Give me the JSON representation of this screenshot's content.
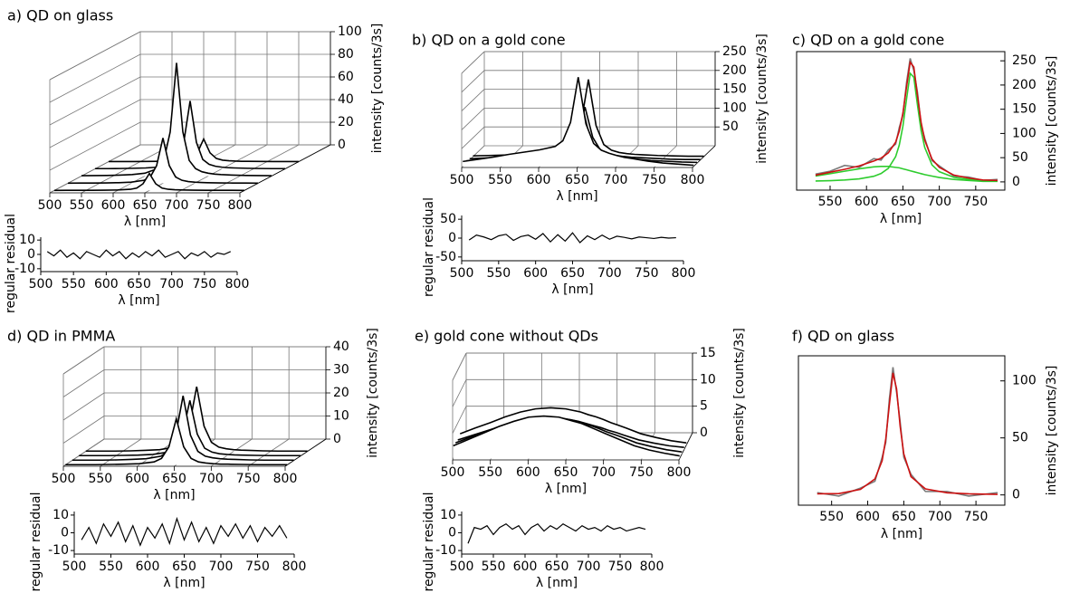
{
  "chart_data": [
    {
      "type": "waterfall",
      "title": "a) QD on glass",
      "xlabel": "λ [nm]",
      "zlabel": "intensity [counts/3s]",
      "xlim": [
        500,
        800
      ],
      "xticks": [
        500,
        550,
        600,
        650,
        700,
        750,
        800
      ],
      "zlim": [
        0,
        100
      ],
      "zticks": [
        0,
        20,
        40,
        60,
        80,
        100
      ],
      "x": [
        500,
        520,
        540,
        560,
        580,
        600,
        620,
        630,
        640,
        650,
        660,
        670,
        680,
        690,
        700,
        710,
        720,
        740,
        760,
        780,
        800
      ],
      "series": [
        {
          "values": [
            0,
            0.1,
            0.1,
            0.1,
            0.2,
            0.4,
            1,
            2.1,
            5.9,
            15,
            5.9,
            2.1,
            1,
            0.6,
            0.4,
            0.3,
            0.2,
            0.1,
            0.1,
            0.1,
            0
          ]
        },
        {
          "values": [
            0.1,
            0.2,
            0.2,
            0.3,
            0.5,
            1,
            2.6,
            5.5,
            15.6,
            40,
            15.6,
            5.5,
            2.6,
            1.5,
            1,
            0.7,
            0.5,
            0.3,
            0.2,
            0.2,
            0.1
          ]
        },
        {
          "values": [
            0.3,
            0.4,
            0.5,
            0.8,
            1.3,
            2.5,
            6.6,
            13.8,
            39,
            100,
            39,
            13.8,
            6.6,
            3.8,
            2.5,
            1.7,
            1.3,
            0.8,
            0.5,
            0.4,
            0.3
          ]
        },
        {
          "values": [
            0.2,
            0.2,
            0.3,
            0.5,
            0.8,
            1.5,
            4,
            8.3,
            23.4,
            60,
            23.4,
            8.3,
            4,
            2.3,
            1.5,
            1,
            0.8,
            0.5,
            0.3,
            0.2,
            0.2
          ]
        },
        {
          "values": [
            0.1,
            0.1,
            0.1,
            0.2,
            0.3,
            0.5,
            1.3,
            2.8,
            7.8,
            20,
            7.8,
            2.8,
            1.3,
            0.8,
            0.5,
            0.3,
            0.3,
            0.2,
            0.1,
            0.1,
            0.1
          ]
        }
      ]
    },
    {
      "type": "residual",
      "xlabel": "λ [nm]",
      "ylabel": "regular residual",
      "xlim": [
        500,
        800
      ],
      "xticks": [
        500,
        550,
        600,
        650,
        700,
        750,
        800
      ],
      "ylim": [
        -12,
        12
      ],
      "yticks": [
        -10,
        0,
        10
      ],
      "x": [
        510,
        520,
        530,
        540,
        550,
        560,
        570,
        580,
        590,
        600,
        610,
        620,
        630,
        640,
        650,
        660,
        670,
        680,
        690,
        700,
        710,
        720,
        730,
        740,
        750,
        760,
        770,
        780,
        790
      ],
      "values": [
        2,
        -1,
        3,
        -2,
        1,
        -3,
        2,
        0,
        -2,
        3,
        -1,
        2,
        -3,
        1,
        -2,
        2,
        -1,
        3,
        -2,
        0,
        2,
        -3,
        1,
        -1,
        2,
        -2,
        1,
        0,
        2
      ]
    },
    {
      "type": "waterfall",
      "title": "b) QD on a gold cone",
      "xlabel": "λ [nm]",
      "zlabel": "intensity [counts/3s]",
      "xlim": [
        500,
        800
      ],
      "xticks": [
        500,
        550,
        600,
        650,
        700,
        750,
        800
      ],
      "zlim": [
        0,
        250
      ],
      "zticks": [
        50,
        100,
        150,
        200,
        250
      ],
      "x": [
        500,
        520,
        540,
        560,
        580,
        600,
        620,
        630,
        640,
        650,
        660,
        670,
        680,
        690,
        700,
        710,
        720,
        740,
        760,
        780,
        800
      ],
      "series": [
        {
          "values": [
            13,
            19,
            25,
            32,
            38,
            44,
            53,
            68,
            117,
            237,
            113,
            61,
            43,
            35,
            29,
            24,
            21,
            14,
            9,
            6,
            3
          ]
        },
        {
          "values": [
            6,
            9,
            12,
            16,
            20,
            23,
            29,
            39,
            74,
            159,
            73,
            35,
            24,
            19,
            16,
            13,
            11,
            7,
            5,
            3,
            2
          ]
        },
        {
          "values": [
            3,
            5,
            6,
            8,
            10,
            13,
            19,
            28,
            61,
            140,
            60,
            26,
            16,
            12,
            9,
            7,
            6,
            4,
            2,
            1,
            1
          ]
        },
        {
          "values": [
            2,
            3,
            4,
            5,
            7,
            10,
            18,
            33,
            83,
            205,
            82,
            32,
            17,
            11,
            8,
            6,
            5,
            3,
            2,
            1,
            1
          ]
        }
      ]
    },
    {
      "type": "residual",
      "xlabel": "λ [nm]",
      "ylabel": "regular residual",
      "xlim": [
        500,
        800
      ],
      "xticks": [
        500,
        550,
        600,
        650,
        700,
        750,
        800
      ],
      "ylim": [
        -60,
        60
      ],
      "yticks": [
        -50,
        0,
        50
      ],
      "x": [
        510,
        520,
        530,
        540,
        550,
        560,
        570,
        580,
        590,
        600,
        610,
        620,
        630,
        640,
        650,
        660,
        670,
        680,
        690,
        700,
        710,
        720,
        730,
        740,
        750,
        760,
        770,
        780,
        790
      ],
      "values": [
        -5,
        8,
        3,
        -4,
        6,
        10,
        -6,
        4,
        8,
        -3,
        12,
        -10,
        9,
        -8,
        14,
        -12,
        6,
        -4,
        8,
        -3,
        5,
        2,
        -2,
        3,
        1,
        -1,
        2,
        0,
        1
      ]
    },
    {
      "type": "fit",
      "title": "c) QD on a gold cone",
      "xlabel": "λ [nm]",
      "ylabel": "intensity [counts/3s]",
      "xlim": [
        504,
        790
      ],
      "xticks": [
        550,
        600,
        650,
        700,
        750
      ],
      "ylim": [
        -17,
        269
      ],
      "yticks": [
        0,
        50,
        100,
        150,
        200,
        250
      ],
      "x": [
        530,
        550,
        570,
        590,
        610,
        620,
        630,
        640,
        645,
        650,
        655,
        660,
        665,
        670,
        675,
        680,
        690,
        700,
        720,
        740,
        760,
        780
      ],
      "series": [
        {
          "color": "#7a7a7a",
          "values": [
            16,
            22,
            34,
            30,
            48,
            45,
            66,
            78,
            112,
            138,
            205,
            255,
            230,
            185,
            118,
            90,
            44,
            33,
            12,
            10,
            3,
            5
          ]
        },
        {
          "color": "#2ecc2e",
          "values": [
            1.9,
            2.6,
            3.9,
            6.2,
            11.6,
            17.3,
            28,
            52,
            76,
            115,
            171,
            224,
            216,
            159,
            106,
            71,
            35,
            21,
            9.4,
            5.3,
            3.4,
            2.4
          ]
        },
        {
          "color": "#2ecc2e",
          "values": [
            12,
            17,
            22,
            27,
            31,
            32,
            32,
            30,
            29,
            27,
            25,
            23,
            21,
            19,
            17,
            15,
            12,
            9,
            5,
            3,
            1,
            1
          ]
        },
        {
          "color": "#cc1111",
          "values": [
            14,
            20,
            26,
            33,
            43,
            49,
            60,
            82,
            105,
            142,
            196,
            247,
            237,
            178,
            123,
            86,
            47,
            30,
            14,
            8,
            4,
            3
          ]
        }
      ]
    },
    {
      "type": "waterfall",
      "title": "d) QD in PMMA",
      "xlabel": "λ [nm]",
      "zlabel": "intensity [counts/3s]",
      "xlim": [
        500,
        800
      ],
      "xticks": [
        500,
        550,
        600,
        650,
        700,
        750,
        800
      ],
      "zlim": [
        0,
        40
      ],
      "zticks": [
        0,
        10,
        20,
        30,
        40
      ],
      "x": [
        500,
        520,
        540,
        560,
        580,
        600,
        620,
        630,
        640,
        650,
        660,
        670,
        680,
        690,
        700,
        710,
        720,
        740,
        760,
        780,
        800
      ],
      "series": [
        {
          "values": [
            0.1,
            0.1,
            0.1,
            0.2,
            0.3,
            0.5,
            1.3,
            2.8,
            7.8,
            20,
            7.8,
            2.8,
            1.3,
            0.8,
            0.5,
            0.3,
            0.3,
            0.2,
            0.1,
            0.1,
            0.1
          ]
        },
        {
          "values": [
            0.1,
            0.1,
            0.1,
            0.2,
            0.4,
            0.7,
            1.8,
            3.9,
            10.9,
            28,
            10.9,
            3.9,
            1.8,
            1.1,
            0.7,
            0.5,
            0.4,
            0.2,
            0.1,
            0.1,
            0.1
          ]
        },
        {
          "values": [
            0.1,
            0.1,
            0.1,
            0.2,
            0.3,
            0.6,
            1.6,
            3.3,
            9.4,
            24,
            9.4,
            3.3,
            1.6,
            0.9,
            0.6,
            0.4,
            0.3,
            0.2,
            0.1,
            0.1,
            0.1
          ]
        },
        {
          "values": [
            0.1,
            0.1,
            0.1,
            0.2,
            0.4,
            0.7,
            1.8,
            3.9,
            10.9,
            28,
            10.9,
            3.9,
            1.8,
            1.1,
            0.7,
            0.5,
            0.4,
            0.2,
            0.1,
            0.1,
            0.1
          ]
        }
      ]
    },
    {
      "type": "residual",
      "xlabel": "λ [nm]",
      "ylabel": "regular residual",
      "xlim": [
        500,
        800
      ],
      "xticks": [
        500,
        550,
        600,
        650,
        700,
        750,
        800
      ],
      "ylim": [
        -12,
        12
      ],
      "yticks": [
        -10,
        0,
        10
      ],
      "x": [
        510,
        520,
        530,
        540,
        550,
        560,
        570,
        580,
        590,
        600,
        610,
        620,
        630,
        640,
        650,
        660,
        670,
        680,
        690,
        700,
        710,
        720,
        730,
        740,
        750,
        760,
        770,
        780,
        790
      ],
      "values": [
        -4,
        3,
        -6,
        5,
        -2,
        6,
        -5,
        4,
        -7,
        3,
        -3,
        5,
        -6,
        8,
        -4,
        6,
        -5,
        3,
        -6,
        4,
        -2,
        5,
        -3,
        4,
        -5,
        3,
        -2,
        4,
        -3
      ]
    },
    {
      "type": "waterfall",
      "title": "e) gold cone without QDs",
      "xlabel": "λ [nm]",
      "zlabel": "intensity [counts/3s]",
      "xlim": [
        500,
        800
      ],
      "xticks": [
        500,
        550,
        600,
        650,
        700,
        750,
        800
      ],
      "zlim": [
        0,
        15
      ],
      "zticks": [
        0,
        5,
        10,
        15
      ],
      "x": [
        500,
        520,
        540,
        560,
        580,
        600,
        620,
        630,
        640,
        650,
        660,
        670,
        680,
        690,
        700,
        710,
        720,
        740,
        760,
        780,
        800
      ],
      "series": [
        {
          "values": [
            2.4,
            3.6,
            4.8,
            6,
            7,
            7.8,
            8,
            7.9,
            7.8,
            7.4,
            7,
            6.6,
            6,
            5.4,
            4.8,
            4.2,
            3.6,
            2.4,
            1.6,
            1,
            0.5
          ]
        },
        {
          "values": [
            2.1,
            3.2,
            4.2,
            5.3,
            6.2,
            6.8,
            7,
            6.9,
            6.8,
            6.5,
            6.2,
            5.7,
            5.3,
            4.8,
            4.2,
            3.7,
            3.2,
            2.1,
            1.4,
            0.8,
            0.4
          ]
        },
        {
          "values": [
            1.8,
            2.7,
            3.6,
            4.5,
            5.3,
            5.8,
            6,
            5.9,
            5.8,
            5.6,
            5.3,
            4.9,
            4.5,
            4.1,
            3.6,
            3.2,
            2.7,
            1.8,
            1.2,
            0.7,
            0.4
          ]
        },
        {
          "values": [
            2.1,
            3.2,
            4.2,
            5.3,
            6.2,
            6.8,
            7,
            6.9,
            6.8,
            6.5,
            6.2,
            5.7,
            5.3,
            4.8,
            4.2,
            3.7,
            3.2,
            2.1,
            1.4,
            0.8,
            0.4
          ]
        }
      ]
    },
    {
      "type": "residual",
      "xlabel": "λ [nm]",
      "ylabel": "regular residual",
      "xlim": [
        500,
        800
      ],
      "xticks": [
        500,
        550,
        600,
        650,
        700,
        750,
        800
      ],
      "ylim": [
        -12,
        12
      ],
      "yticks": [
        -10,
        0,
        10
      ],
      "x": [
        510,
        520,
        530,
        540,
        550,
        560,
        570,
        580,
        590,
        600,
        610,
        620,
        630,
        640,
        650,
        660,
        670,
        680,
        690,
        700,
        710,
        720,
        730,
        740,
        750,
        760,
        770,
        780,
        790
      ],
      "values": [
        -6,
        3,
        2,
        4,
        -1,
        3,
        5,
        2,
        4,
        -1,
        3,
        5,
        1,
        4,
        2,
        5,
        3,
        1,
        4,
        2,
        3,
        1,
        4,
        2,
        3,
        1,
        2,
        3,
        2
      ]
    },
    {
      "type": "fit",
      "title": "f) QD on glass",
      "xlabel": "λ [nm]",
      "ylabel": "intensity [counts/3s]",
      "xlim": [
        504,
        790
      ],
      "xticks": [
        550,
        600,
        650,
        700,
        750
      ],
      "ylim": [
        -9,
        122
      ],
      "yticks": [
        0,
        50,
        100
      ],
      "x": [
        530,
        560,
        590,
        610,
        620,
        625,
        630,
        635,
        640,
        645,
        650,
        660,
        680,
        710,
        740,
        780
      ],
      "series": [
        {
          "color": "#7a7a7a",
          "values": [
            2,
            -1,
            6,
            12,
            33,
            46,
            84,
            112,
            90,
            64,
            33,
            18,
            3,
            3,
            -1,
            2
          ]
        },
        {
          "color": "#cc1111",
          "values": [
            1,
            1.2,
            4.9,
            14,
            30,
            49,
            79,
            107,
            93,
            60,
            36,
            16,
            5.3,
            1.9,
            1,
            0.5
          ]
        }
      ]
    }
  ]
}
